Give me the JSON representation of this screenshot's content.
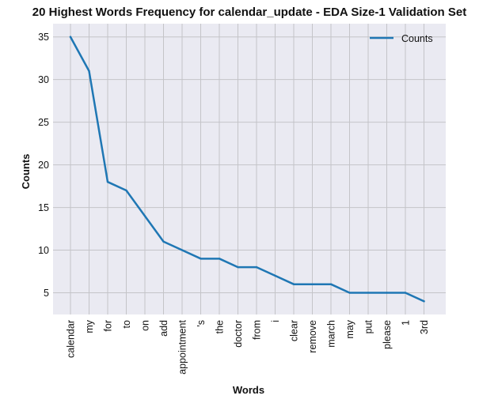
{
  "chart_data": {
    "type": "line",
    "title": "20 Highest Words Frequency for calendar_update - EDA Size-1 Validation Set",
    "xlabel": "Words",
    "ylabel": "Counts",
    "categories": [
      "calendar",
      "my",
      "for",
      "to",
      "on",
      "add",
      "appointment",
      "'s",
      "the",
      "doctor",
      "from",
      "i",
      "clear",
      "remove",
      "march",
      "may",
      "put",
      "please",
      "1",
      "3rd"
    ],
    "series": [
      {
        "name": "Counts",
        "values": [
          35,
          31,
          18,
          17,
          14,
          11,
          10,
          9,
          9,
          8,
          8,
          7,
          6,
          6,
          6,
          5,
          5,
          5,
          5,
          4
        ]
      }
    ],
    "yticks": [
      5,
      10,
      15,
      20,
      25,
      30,
      35
    ],
    "ylim": [
      2.45,
      36.55
    ],
    "grid": true,
    "legend_position": "top-right",
    "colors": {
      "line": "#1f77b4",
      "background": "#eaeaf2",
      "grid": "#c4c4c8"
    }
  }
}
